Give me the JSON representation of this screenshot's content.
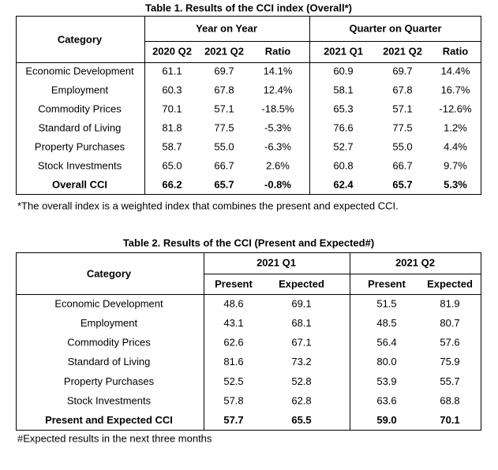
{
  "table1": {
    "title": "Table 1. Results of the CCI index (Overall*)",
    "category_header": "Category",
    "groups": [
      {
        "label": "Year on Year",
        "columns": [
          "2020 Q2",
          "2021 Q2",
          "Ratio"
        ]
      },
      {
        "label": "Quarter on Quarter",
        "columns": [
          "2021 Q1",
          "2021 Q2",
          "Ratio"
        ]
      }
    ],
    "rows": [
      [
        "Economic Development",
        "61.1",
        "69.7",
        "14.1%",
        "60.9",
        "69.7",
        "14.4%"
      ],
      [
        "Employment",
        "60.3",
        "67.8",
        "12.4%",
        "58.1",
        "67.8",
        "16.7%"
      ],
      [
        "Commodity Prices",
        "70.1",
        "57.1",
        "-18.5%",
        "65.3",
        "57.1",
        "-12.6%"
      ],
      [
        "Standard of Living",
        "81.8",
        "77.5",
        "-5.3%",
        "76.6",
        "77.5",
        "1.2%"
      ],
      [
        "Property Purchases",
        "58.7",
        "55.0",
        "-6.3%",
        "52.7",
        "55.0",
        "4.4%"
      ],
      [
        "Stock Investments",
        "65.0",
        "66.7",
        "2.6%",
        "60.8",
        "66.7",
        "9.7%"
      ],
      [
        "Overall CCI",
        "66.2",
        "65.7",
        "-0.8%",
        "62.4",
        "65.7",
        "5.3%"
      ]
    ],
    "footnote": "*The overall index is a weighted index that combines the present and expected CCI."
  },
  "table2": {
    "title": "Table 2. Results of the CCI (Present and Expected#)",
    "category_header": "Category",
    "groups": [
      {
        "label": "2021 Q1",
        "columns": [
          "Present",
          "Expected"
        ]
      },
      {
        "label": "2021 Q2",
        "columns": [
          "Present",
          "Expected"
        ]
      }
    ],
    "rows": [
      [
        "Economic Development",
        "48.6",
        "69.1",
        "51.5",
        "81.9"
      ],
      [
        "Employment",
        "43.1",
        "68.1",
        "48.5",
        "80.7"
      ],
      [
        "Commodity Prices",
        "62.6",
        "67.1",
        "56.4",
        "57.6"
      ],
      [
        "Standard of Living",
        "81.6",
        "73.2",
        "80.0",
        "75.9"
      ],
      [
        "Property Purchases",
        "52.5",
        "52.8",
        "53.9",
        "55.7"
      ],
      [
        "Stock Investments",
        "57.8",
        "62.8",
        "63.6",
        "68.8"
      ],
      [
        "Present and Expected CCI",
        "57.7",
        "65.5",
        "59.0",
        "70.1"
      ]
    ],
    "footnote": "#Expected results in the next three months"
  }
}
